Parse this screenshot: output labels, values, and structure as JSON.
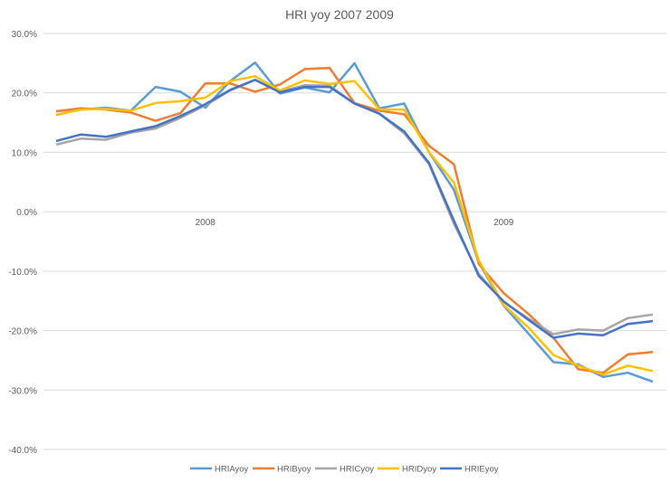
{
  "chart_data": {
    "type": "line",
    "title": "HRI yoy 2007 2009",
    "xlabel": "",
    "ylabel": "",
    "ylim": [
      -0.4,
      0.3
    ],
    "yticks": [
      0.3,
      0.2,
      0.1,
      0.0,
      -0.1,
      -0.2,
      -0.3,
      -0.4
    ],
    "ytick_labels": [
      "30.0%",
      "20.0%",
      "10.0%",
      "0.0%",
      "-10.0%",
      "-20.0%",
      "-30.0%",
      "-40.0%"
    ],
    "x_labels": [
      {
        "label": "2008",
        "index": 6
      },
      {
        "label": "2009",
        "index": 18
      }
    ],
    "grid": true,
    "legend_position": "bottom",
    "series": [
      {
        "name": "HRIAyoy",
        "color": "#5B9BD5",
        "values": [
          16.3,
          17.2,
          17.5,
          17.0,
          21.0,
          20.2,
          17.5,
          22.0,
          25.1,
          19.9,
          20.9,
          20.1,
          25.0,
          17.4,
          18.2,
          10.0,
          3.7,
          -8.5,
          -15.8,
          -20.5,
          -25.3,
          -25.7,
          -27.8,
          -27.1,
          -28.6
        ]
      },
      {
        "name": "HRIByoy",
        "color": "#ED7D31",
        "values": [
          16.9,
          17.4,
          17.2,
          16.7,
          15.3,
          16.6,
          21.6,
          21.6,
          20.2,
          21.4,
          24.0,
          24.2,
          18.3,
          17.0,
          16.4,
          11.1,
          8.0,
          -8.8,
          -13.7,
          -17.2,
          -21.2,
          -26.5,
          -27.1,
          -24.0,
          -23.6
        ]
      },
      {
        "name": "HRICyoy",
        "color": "#A5A5A5",
        "values": [
          11.3,
          12.3,
          12.1,
          13.3,
          14.0,
          15.8,
          17.9,
          20.4,
          22.2,
          20.2,
          21.3,
          21.2,
          18.2,
          16.5,
          13.2,
          8.0,
          -2.0,
          -10.5,
          -15.2,
          -18.0,
          -20.6,
          -19.8,
          -20.0,
          -17.9,
          -17.3
        ]
      },
      {
        "name": "HRIDyoy",
        "color": "#FFC000",
        "values": [
          16.3,
          17.2,
          17.3,
          17.0,
          18.3,
          18.6,
          19.2,
          22.0,
          22.8,
          20.4,
          22.1,
          21.5,
          22.0,
          17.2,
          17.2,
          10.0,
          4.9,
          -8.2,
          -15.7,
          -19.5,
          -24.1,
          -25.9,
          -27.4,
          -25.9,
          -26.8
        ]
      },
      {
        "name": "HRIEyoy",
        "color": "#4472C4",
        "values": [
          11.9,
          13.0,
          12.6,
          13.5,
          14.4,
          16.1,
          18.1,
          20.5,
          22.2,
          20.1,
          21.0,
          21.0,
          18.2,
          16.5,
          13.5,
          8.2,
          -1.5,
          -10.8,
          -15.1,
          -18.2,
          -21.2,
          -20.5,
          -20.8,
          -18.9,
          -18.4
        ]
      }
    ]
  }
}
